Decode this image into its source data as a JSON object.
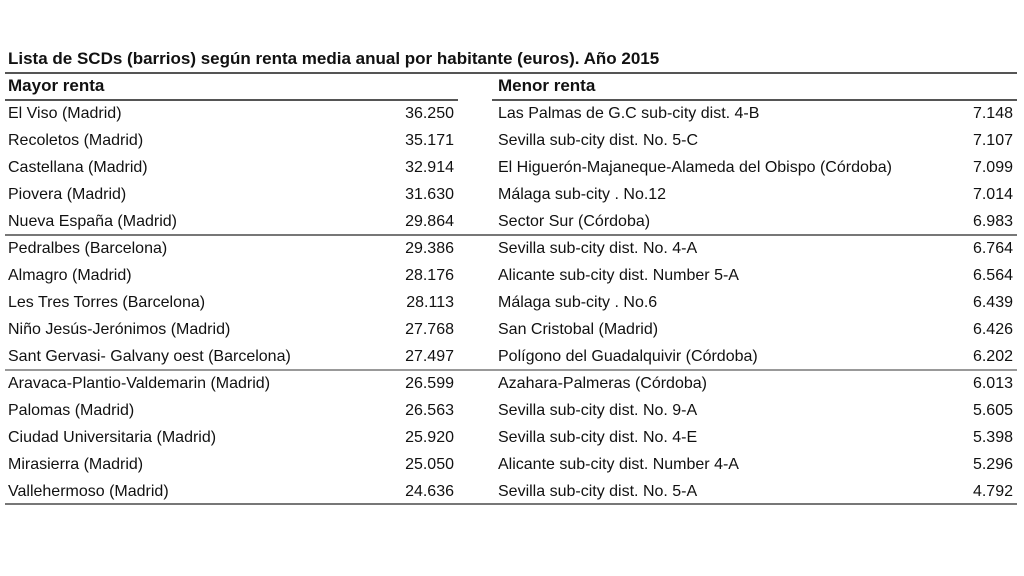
{
  "title": "Lista de SCDs (barrios) según renta media anual por habitante (euros). Año 2015",
  "left": {
    "header": "Mayor renta",
    "rows": [
      {
        "name": "El Viso (Madrid)",
        "value": "36.250"
      },
      {
        "name": "Recoletos (Madrid)",
        "value": "35.171"
      },
      {
        "name": "Castellana (Madrid)",
        "value": "32.914"
      },
      {
        "name": "Piovera (Madrid)",
        "value": "31.630"
      },
      {
        "name": "Nueva España (Madrid)",
        "value": "29.864"
      },
      {
        "name": "Pedralbes (Barcelona)",
        "value": "29.386"
      },
      {
        "name": "Almagro (Madrid)",
        "value": "28.176"
      },
      {
        "name": "Les Tres Torres (Barcelona)",
        "value": "28.113"
      },
      {
        "name": "Niño Jesús-Jerónimos (Madrid)",
        "value": "27.768"
      },
      {
        "name": "Sant Gervasi- Galvany oest (Barcelona)",
        "value": "27.497"
      },
      {
        "name": "Aravaca-Plantio-Valdemarin (Madrid)",
        "value": "26.599"
      },
      {
        "name": "Palomas (Madrid)",
        "value": "26.563"
      },
      {
        "name": "Ciudad Universitaria (Madrid)",
        "value": "25.920"
      },
      {
        "name": "Mirasierra (Madrid)",
        "value": "25.050"
      },
      {
        "name": "Vallehermoso (Madrid)",
        "value": "24.636"
      }
    ]
  },
  "right": {
    "header": "Menor renta",
    "rows": [
      {
        "name": "Las Palmas de G.C sub-city dist. 4-B",
        "value": "7.148"
      },
      {
        "name": "Sevilla sub-city dist. No. 5-C",
        "value": "7.107"
      },
      {
        "name": "El Higuerón-Majaneque-Alameda del Obispo (Córdoba)",
        "value": "7.099"
      },
      {
        "name": "Málaga sub-city . No.12",
        "value": "7.014"
      },
      {
        "name": "Sector Sur (Córdoba)",
        "value": "6.983"
      },
      {
        "name": "Sevilla sub-city dist. No. 4-A",
        "value": "6.764"
      },
      {
        "name": "Alicante sub-city dist. Number 5-A",
        "value": "6.564"
      },
      {
        "name": "Málaga sub-city . No.6",
        "value": "6.439"
      },
      {
        "name": "San Cristobal (Madrid)",
        "value": "6.426"
      },
      {
        "name": "Polígono del Guadalquivir (Córdoba)",
        "value": "6.202"
      },
      {
        "name": "Azahara-Palmeras (Córdoba)",
        "value": "6.013"
      },
      {
        "name": "Sevilla sub-city dist. No. 9-A",
        "value": "5.605"
      },
      {
        "name": "Sevilla sub-city dist. No. 4-E",
        "value": "5.398"
      },
      {
        "name": "Alicante sub-city dist. Number 4-A",
        "value": "5.296"
      },
      {
        "name": "Sevilla sub-city dist. No. 5-A",
        "value": "4.792"
      }
    ]
  }
}
